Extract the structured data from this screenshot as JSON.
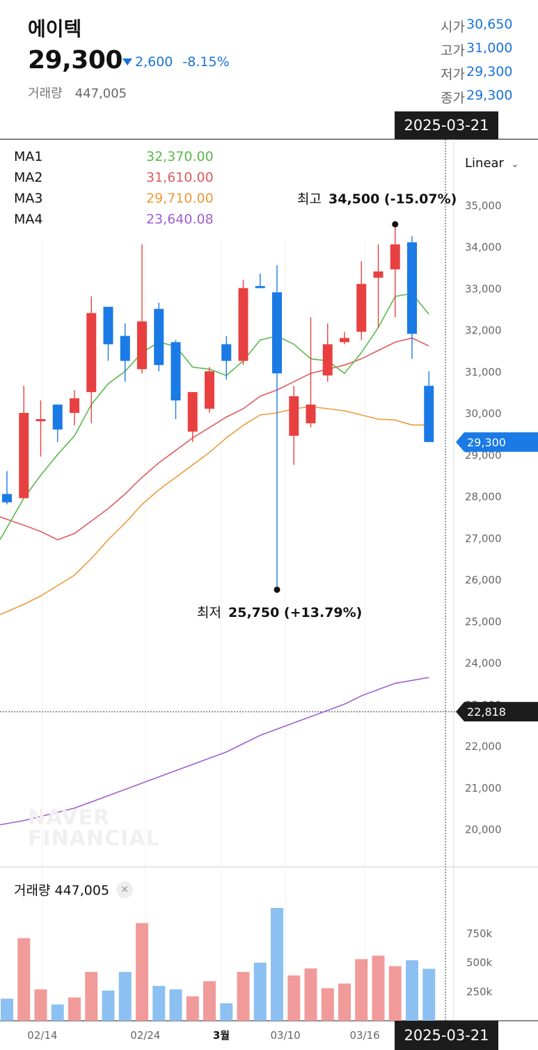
{
  "stock": {
    "name": "에이텍",
    "price": "29,300",
    "change": "2,600",
    "change_pct": "-8.15%",
    "volume_label": "거래량",
    "volume_value": "447,005"
  },
  "ohlc": [
    {
      "label": "시가",
      "value": "30,650"
    },
    {
      "label": "고가",
      "value": "31,000"
    },
    {
      "label": "저가",
      "value": "29,300"
    },
    {
      "label": "종가",
      "value": "29,300"
    }
  ],
  "selected_date": "2025-03-21",
  "scale_mode": "Linear",
  "volume_legend": "거래량 447,005",
  "watermark": [
    "NAVER",
    "FINANCIAL"
  ],
  "colors": {
    "up": "#e84040",
    "down": "#1a7ae6",
    "ma1": "#5ab84a",
    "ma2": "#e05a5a",
    "ma3": "#ee9a3a",
    "ma4": "#a05ed0",
    "vol_up": "#f19a9a",
    "vol_down": "#8cc0f2"
  },
  "chart_data": {
    "type": "candlestick",
    "price_axis": {
      "ticks": [
        "20,000",
        "21,000",
        "22,000",
        "23,000",
        "24,000",
        "25,000",
        "26,000",
        "27,000",
        "28,000",
        "29,000",
        "30,000",
        "31,000",
        "32,000",
        "33,000",
        "34,000",
        "35,000"
      ],
      "range": [
        19300,
        35600
      ]
    },
    "volume_axis": {
      "ticks": [
        "250k",
        "500k",
        "750k"
      ]
    },
    "x_ticks": [
      "02/14",
      "02/24",
      "3월",
      "03/10",
      "03/16"
    ],
    "ma_legend": [
      {
        "name": "MA1",
        "value": "32,370.00"
      },
      {
        "name": "MA2",
        "value": "31,610.00"
      },
      {
        "name": "MA3",
        "value": "29,710.00"
      },
      {
        "name": "MA4",
        "value": "23,640.08"
      }
    ],
    "candles": [
      {
        "o": 28050,
        "h": 28600,
        "l": 27800,
        "c": 27850
      },
      {
        "o": 27950,
        "h": 30650,
        "l": 27950,
        "c": 30000
      },
      {
        "o": 29800,
        "h": 30300,
        "l": 28950,
        "c": 29850
      },
      {
        "o": 30200,
        "h": 30200,
        "l": 29300,
        "c": 29600
      },
      {
        "o": 30000,
        "h": 30550,
        "l": 29700,
        "c": 30350
      },
      {
        "o": 30500,
        "h": 32800,
        "l": 29750,
        "c": 32400
      },
      {
        "o": 32550,
        "h": 32550,
        "l": 31250,
        "c": 31650
      },
      {
        "o": 31850,
        "h": 32150,
        "l": 30750,
        "c": 31250
      },
      {
        "o": 31050,
        "h": 34050,
        "l": 30950,
        "c": 32200
      },
      {
        "o": 32500,
        "h": 32650,
        "l": 31000,
        "c": 31150
      },
      {
        "o": 31700,
        "h": 31750,
        "l": 29850,
        "c": 30300
      },
      {
        "o": 29550,
        "h": 30500,
        "l": 29300,
        "c": 30500
      },
      {
        "o": 30100,
        "h": 31100,
        "l": 30000,
        "c": 31000
      },
      {
        "o": 31650,
        "h": 31850,
        "l": 30800,
        "c": 31250
      },
      {
        "o": 31250,
        "h": 33200,
        "l": 31150,
        "c": 33000
      },
      {
        "o": 33050,
        "h": 33350,
        "l": 33000,
        "c": 33000
      },
      {
        "o": 32900,
        "h": 33550,
        "l": 25750,
        "c": 30950
      },
      {
        "o": 29450,
        "h": 30650,
        "l": 28750,
        "c": 30400
      },
      {
        "o": 29750,
        "h": 32300,
        "l": 29650,
        "c": 30200
      },
      {
        "o": 30900,
        "h": 32150,
        "l": 30750,
        "c": 31650
      },
      {
        "o": 31700,
        "h": 31950,
        "l": 31650,
        "c": 31800
      },
      {
        "o": 31950,
        "h": 33650,
        "l": 31750,
        "c": 33100
      },
      {
        "o": 33250,
        "h": 34050,
        "l": 32050,
        "c": 33400
      },
      {
        "o": 33450,
        "h": 34500,
        "l": 32300,
        "c": 34050
      },
      {
        "o": 34100,
        "h": 34250,
        "l": 31300,
        "c": 31900
      },
      {
        "o": 30650,
        "h": 31000,
        "l": 29300,
        "c": 29300
      }
    ],
    "ma1": [
      26950,
      27950,
      28500,
      29000,
      29450,
      30200,
      30700,
      31000,
      31450,
      31700,
      31600,
      31100,
      31050,
      30900,
      31250,
      31750,
      31850,
      31650,
      31300,
      31250,
      30950,
      31450,
      32050,
      32800,
      32870,
      32370
    ],
    "ma2": [
      27500,
      27300,
      27150,
      26950,
      27100,
      27400,
      27700,
      28050,
      28450,
      28800,
      29100,
      29400,
      29650,
      29900,
      30100,
      30400,
      30550,
      30750,
      30950,
      31050,
      31150,
      31300,
      31500,
      31700,
      31800,
      31610
    ],
    "ma3": [
      25150,
      25400,
      25600,
      25850,
      26100,
      26500,
      26950,
      27350,
      27800,
      28150,
      28450,
      28750,
      29050,
      29400,
      29700,
      29950,
      30000,
      30100,
      30150,
      30100,
      30050,
      29950,
      29850,
      29830,
      29710,
      29710
    ],
    "ma4": [
      20100,
      20200,
      20300,
      20400,
      20500,
      20650,
      20800,
      20950,
      21100,
      21250,
      21400,
      21550,
      21700,
      21850,
      22050,
      22250,
      22400,
      22550,
      22700,
      22850,
      23000,
      23200,
      23350,
      23500,
      23570,
      23640
    ],
    "volumes": [
      190000,
      710000,
      270000,
      140000,
      200000,
      420000,
      260000,
      420000,
      840000,
      300000,
      270000,
      210000,
      340000,
      150000,
      420000,
      500000,
      970000,
      390000,
      450000,
      280000,
      320000,
      530000,
      560000,
      470000,
      520000,
      447005
    ],
    "highest": {
      "label": "최고",
      "value": "34,500 (-15.07%)",
      "price": 34500
    },
    "lowest": {
      "label": "최저",
      "value": "25,750 (+13.79%)",
      "price": 25750
    },
    "current_price_tag": {
      "value": "29,300",
      "price": 29300
    },
    "crosshair_price_tag": {
      "value": "22,818",
      "price": 22818
    }
  }
}
